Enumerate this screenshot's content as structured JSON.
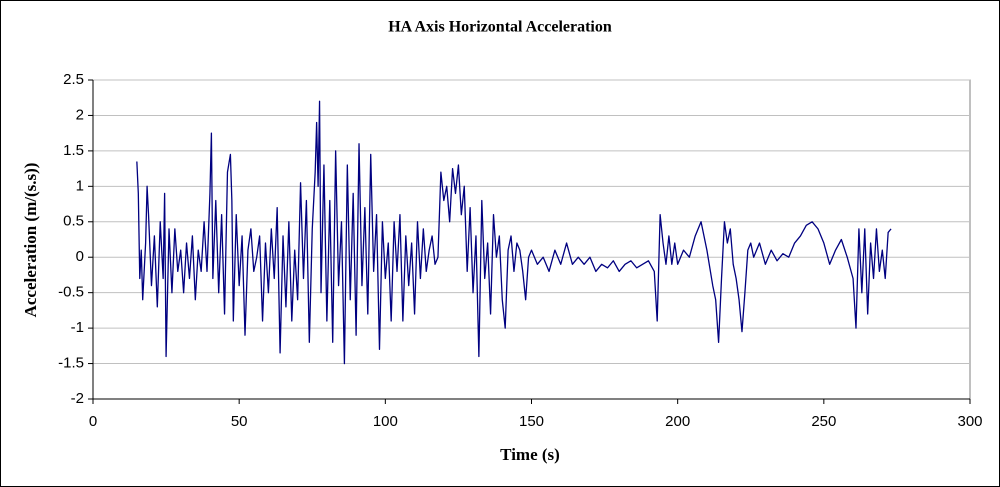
{
  "chart_data": {
    "type": "line",
    "title": "HA Axis Horizontal Acceleration",
    "x_label": "Time (s)",
    "y_label": "Acceleration (m/(s.s))",
    "color": "#000080",
    "grid": true,
    "xlim": [
      0,
      300
    ],
    "xticks": [
      0,
      50,
      100,
      150,
      200,
      250,
      300
    ],
    "ylim": [
      -2,
      2.5
    ],
    "yticks": [
      2.5,
      2,
      1.5,
      1,
      0.5,
      0,
      -0.5,
      -1,
      -1.5,
      -2
    ],
    "x": [
      15,
      15.5,
      16,
      16.5,
      17,
      18,
      18.5,
      19,
      20,
      21,
      22,
      23,
      24,
      24.5,
      25,
      26,
      27,
      28,
      29,
      30,
      31,
      32,
      33,
      34,
      35,
      36,
      37,
      38,
      39,
      40,
      40.5,
      41,
      42,
      43,
      44,
      45,
      46,
      47,
      47.5,
      48,
      49,
      50,
      51,
      52,
      53,
      54,
      55,
      56,
      57,
      58,
      59,
      60,
      61,
      62,
      63,
      64,
      65,
      66,
      67,
      68,
      69,
      70,
      71,
      72,
      73,
      74,
      75,
      76,
      76.5,
      77,
      77.5,
      78,
      79,
      80,
      81,
      82,
      83,
      84,
      85,
      86,
      87,
      88,
      89,
      90,
      91,
      92,
      93,
      94,
      95,
      96,
      97,
      98,
      99,
      100,
      101,
      102,
      103,
      104,
      105,
      106,
      107,
      108,
      109,
      110,
      111,
      112,
      113,
      114,
      115,
      116,
      117,
      118,
      119,
      120,
      121,
      122,
      123,
      124,
      125,
      126,
      127,
      128,
      129,
      130,
      131,
      132,
      133,
      134,
      135,
      136,
      137,
      138,
      139,
      140,
      141,
      142,
      143,
      144,
      145,
      146,
      147,
      148,
      149,
      150,
      152,
      154,
      156,
      158,
      160,
      162,
      164,
      166,
      168,
      170,
      172,
      174,
      176,
      178,
      180,
      182,
      184,
      186,
      188,
      190,
      192,
      193,
      194,
      195,
      196,
      197,
      198,
      199,
      200,
      202,
      204,
      206,
      208,
      210,
      212,
      213,
      214,
      215,
      216,
      217,
      218,
      219,
      220,
      221,
      222,
      223,
      224,
      225,
      226,
      228,
      230,
      232,
      234,
      236,
      238,
      240,
      242,
      244,
      246,
      248,
      250,
      252,
      254,
      256,
      258,
      260,
      261,
      262,
      263,
      264,
      265,
      266,
      267,
      268,
      269,
      270,
      271,
      272,
      273
    ],
    "values": [
      1.35,
      0.9,
      -0.3,
      0.1,
      -0.6,
      0.2,
      1.0,
      0.6,
      -0.4,
      0.3,
      -0.7,
      0.5,
      -0.3,
      0.9,
      -1.4,
      0.4,
      -0.5,
      0.4,
      -0.2,
      0.1,
      -0.5,
      0.2,
      -0.3,
      0.3,
      -0.6,
      0.1,
      -0.2,
      0.5,
      -0.2,
      0.9,
      1.75,
      -0.3,
      0.8,
      -0.5,
      0.6,
      -0.8,
      1.2,
      1.45,
      0.8,
      -0.9,
      0.6,
      -0.4,
      0.3,
      -1.1,
      0.1,
      0.4,
      -0.2,
      0.0,
      0.3,
      -0.9,
      0.2,
      -0.5,
      0.4,
      -0.3,
      0.7,
      -1.35,
      0.3,
      -0.7,
      0.5,
      -0.9,
      0.1,
      -0.6,
      1.05,
      -0.3,
      0.8,
      -1.2,
      0.4,
      1.2,
      1.9,
      1.0,
      2.2,
      -0.5,
      1.3,
      -0.9,
      0.8,
      -1.2,
      1.5,
      -0.4,
      0.5,
      -1.5,
      1.3,
      -0.6,
      0.9,
      -1.1,
      1.6,
      -0.4,
      0.7,
      -0.8,
      1.45,
      -0.2,
      0.6,
      -1.3,
      0.5,
      -0.3,
      0.2,
      -0.9,
      0.5,
      -0.2,
      0.6,
      -0.9,
      0.3,
      -0.4,
      0.2,
      -0.8,
      0.5,
      -0.3,
      0.4,
      -0.2,
      0.1,
      0.3,
      -0.1,
      0.0,
      1.2,
      0.8,
      1.0,
      0.5,
      1.25,
      0.9,
      1.3,
      0.6,
      1.0,
      -0.2,
      0.7,
      -0.5,
      0.3,
      -1.4,
      0.8,
      -0.3,
      0.2,
      -0.8,
      0.6,
      0.0,
      0.3,
      -0.6,
      -1.0,
      0.1,
      0.3,
      -0.2,
      0.2,
      0.1,
      -0.2,
      -0.6,
      0.0,
      0.1,
      -0.1,
      0.0,
      -0.2,
      0.1,
      -0.1,
      0.2,
      -0.1,
      0.0,
      -0.1,
      0.0,
      -0.2,
      -0.1,
      -0.15,
      -0.05,
      -0.2,
      -0.1,
      -0.05,
      -0.15,
      -0.1,
      -0.05,
      -0.2,
      -0.9,
      0.6,
      0.2,
      -0.1,
      0.3,
      -0.1,
      0.2,
      -0.1,
      0.1,
      0.0,
      0.3,
      0.5,
      0.1,
      -0.4,
      -0.6,
      -1.2,
      -0.3,
      0.5,
      0.2,
      0.4,
      -0.1,
      -0.3,
      -0.6,
      -1.05,
      -0.5,
      0.1,
      0.2,
      0.0,
      0.2,
      -0.1,
      0.1,
      -0.05,
      0.05,
      0.0,
      0.2,
      0.3,
      0.45,
      0.5,
      0.4,
      0.2,
      -0.1,
      0.1,
      0.25,
      0.0,
      -0.3,
      -1.0,
      0.4,
      -0.5,
      0.4,
      -0.8,
      0.2,
      -0.3,
      0.4,
      -0.2,
      0.1,
      -0.3,
      0.35,
      0.4
    ]
  }
}
